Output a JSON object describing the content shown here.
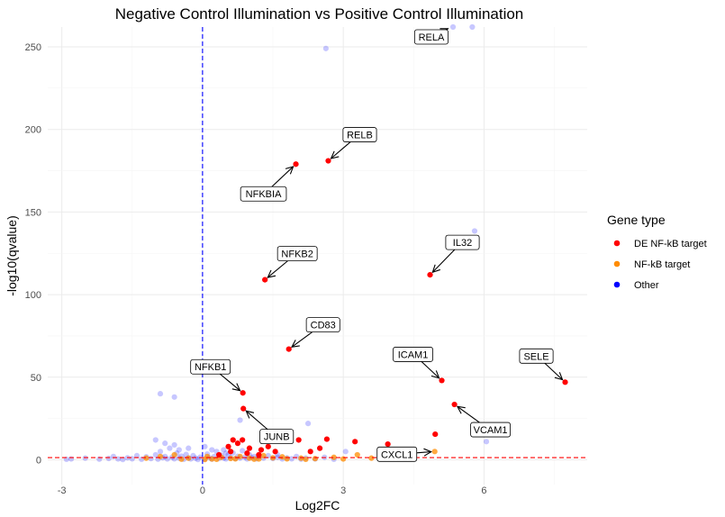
{
  "chart_data": {
    "type": "scatter",
    "title": "Negative Control Illumination vs Positive Control Illumination",
    "xlabel": "Log2FC",
    "ylabel": "-log10(qvalue)",
    "xlim": [
      -3.3,
      8.2
    ],
    "ylim": [
      -15,
      262
    ],
    "x_ticks": [
      -3,
      0,
      3,
      6
    ],
    "y_ticks": [
      0,
      50,
      100,
      150,
      200,
      250
    ],
    "grid": true,
    "legend_title": "Gene type",
    "legend_position": "right",
    "series": [
      {
        "name": "DE NF-kB target",
        "color": "#ff0000",
        "points": [
          [
            1.99,
            179
          ],
          [
            2.68,
            181
          ],
          [
            1.33,
            109
          ],
          [
            4.85,
            112
          ],
          [
            1.84,
            67
          ],
          [
            0.86,
            40.5
          ],
          [
            5.1,
            48
          ],
          [
            7.73,
            47
          ],
          [
            5.37,
            33.5
          ],
          [
            0.87,
            31
          ],
          [
            4.96,
            15.5
          ],
          [
            0.65,
            12
          ],
          [
            0.85,
            12
          ],
          [
            0.55,
            8
          ],
          [
            0.75,
            10
          ],
          [
            1.0,
            7
          ],
          [
            1.25,
            6
          ],
          [
            1.4,
            8
          ],
          [
            1.55,
            5
          ],
          [
            2.05,
            12
          ],
          [
            2.3,
            5
          ],
          [
            2.5,
            7
          ],
          [
            2.65,
            12.5
          ],
          [
            3.25,
            11
          ],
          [
            3.95,
            9.5
          ],
          [
            0.35,
            3
          ],
          [
            0.6,
            5
          ],
          [
            0.95,
            4
          ],
          [
            1.2,
            3
          ]
        ]
      },
      {
        "name": "NF-kB target",
        "color": "#ff8c00",
        "points": [
          [
            4.95,
            5
          ],
          [
            -0.9,
            2
          ],
          [
            -0.6,
            3
          ],
          [
            -0.3,
            1
          ],
          [
            0.1,
            2
          ],
          [
            0.2,
            0.5
          ],
          [
            0.4,
            1.5
          ],
          [
            0.6,
            0.8
          ],
          [
            0.8,
            2
          ],
          [
            1.0,
            1
          ],
          [
            1.2,
            0.5
          ],
          [
            1.5,
            1.2
          ],
          [
            1.8,
            0.6
          ],
          [
            2.1,
            1
          ],
          [
            2.4,
            0.7
          ],
          [
            2.8,
            1.5
          ],
          [
            3.0,
            0.5
          ],
          [
            3.3,
            3
          ],
          [
            3.6,
            1
          ],
          [
            -1.2,
            1
          ],
          [
            -0.45,
            0.4
          ],
          [
            0.05,
            0.2
          ],
          [
            0.3,
            0.3
          ],
          [
            0.7,
            0.6
          ],
          [
            1.1,
            0.4
          ],
          [
            1.3,
            2.5
          ],
          [
            1.7,
            1.8
          ],
          [
            2.2,
            0.3
          ]
        ]
      },
      {
        "name": "Other",
        "color": "#0000ff",
        "points": [
          [
            2.63,
            249
          ],
          [
            5.75,
            262
          ],
          [
            5.34,
            262
          ],
          [
            5.8,
            138.5
          ],
          [
            -0.9,
            40
          ],
          [
            -0.6,
            38
          ],
          [
            6.05,
            11
          ],
          [
            0.8,
            24
          ],
          [
            2.25,
            22
          ],
          [
            3.05,
            5
          ],
          [
            0.5,
            4
          ],
          [
            1.6,
            3
          ],
          [
            -0.5,
            6
          ],
          [
            -1.0,
            12
          ],
          [
            -2.8,
            0.5
          ],
          [
            -2.5,
            1
          ],
          [
            -2.2,
            0.4
          ],
          [
            -2.0,
            0.8
          ],
          [
            -1.8,
            0.5
          ],
          [
            -1.6,
            1.2
          ],
          [
            -1.5,
            0.6
          ],
          [
            -1.4,
            2.5
          ],
          [
            -1.3,
            0.3
          ],
          [
            -1.2,
            1.8
          ],
          [
            -1.1,
            0.7
          ],
          [
            -1.0,
            3
          ],
          [
            -0.95,
            0.4
          ],
          [
            -0.9,
            5
          ],
          [
            -0.85,
            1.2
          ],
          [
            -0.8,
            2
          ],
          [
            -0.75,
            0.5
          ],
          [
            -0.7,
            7
          ],
          [
            -0.65,
            1.5
          ],
          [
            -0.6,
            0.6
          ],
          [
            -0.55,
            4
          ],
          [
            -0.5,
            1
          ],
          [
            -0.45,
            2.2
          ],
          [
            -0.4,
            0.3
          ],
          [
            -0.35,
            3.2
          ],
          [
            -0.3,
            1.1
          ],
          [
            -0.25,
            0.5
          ],
          [
            -0.2,
            2.5
          ],
          [
            -0.15,
            1
          ],
          [
            -0.1,
            0.2
          ],
          [
            -0.05,
            1.6
          ],
          [
            0.05,
            0.6
          ],
          [
            0.1,
            3.5
          ],
          [
            0.15,
            1.2
          ],
          [
            0.2,
            0.4
          ],
          [
            0.25,
            2
          ],
          [
            0.3,
            5
          ],
          [
            0.35,
            0.8
          ],
          [
            0.4,
            2.8
          ],
          [
            0.45,
            1
          ],
          [
            0.5,
            0.5
          ],
          [
            0.55,
            3
          ],
          [
            0.6,
            1.3
          ],
          [
            0.65,
            4.2
          ],
          [
            0.7,
            0.7
          ],
          [
            0.75,
            2.1
          ],
          [
            0.8,
            1
          ],
          [
            0.85,
            5.5
          ],
          [
            0.9,
            1.5
          ],
          [
            0.95,
            0.5
          ],
          [
            1.0,
            3
          ],
          [
            1.05,
            1.2
          ],
          [
            1.1,
            2
          ],
          [
            1.15,
            0.6
          ],
          [
            1.2,
            1.8
          ],
          [
            1.3,
            1
          ],
          [
            1.4,
            2.5
          ],
          [
            1.5,
            0.8
          ],
          [
            1.6,
            1.5
          ],
          [
            1.7,
            0.5
          ],
          [
            1.8,
            1.2
          ],
          [
            1.9,
            0.6
          ],
          [
            2.0,
            2
          ],
          [
            2.1,
            0.4
          ],
          [
            2.2,
            1
          ],
          [
            2.4,
            0.5
          ],
          [
            2.6,
            1.5
          ],
          [
            2.8,
            0.3
          ],
          [
            -0.6,
            9
          ],
          [
            -0.3,
            7
          ],
          [
            0.2,
            6
          ],
          [
            -0.8,
            10
          ],
          [
            0.05,
            8
          ],
          [
            0.45,
            6
          ],
          [
            -1.7,
            0.2
          ],
          [
            -2.9,
            0.3
          ],
          [
            -1.9,
            2
          ]
        ]
      }
    ],
    "annotations": [
      {
        "label": "RELA",
        "x": 5.3,
        "y": 262
      },
      {
        "label": "RELB",
        "x": 2.68,
        "y": 181
      },
      {
        "label": "NFKBIA",
        "x": 1.99,
        "y": 179
      },
      {
        "label": "NFKB2",
        "x": 1.33,
        "y": 109
      },
      {
        "label": "IL32",
        "x": 4.85,
        "y": 112
      },
      {
        "label": "CD83",
        "x": 1.84,
        "y": 67
      },
      {
        "label": "NFKB1",
        "x": 0.86,
        "y": 40.5
      },
      {
        "label": "ICAM1",
        "x": 5.1,
        "y": 48
      },
      {
        "label": "SELE",
        "x": 7.73,
        "y": 47
      },
      {
        "label": "JUNB",
        "x": 0.87,
        "y": 31
      },
      {
        "label": "VCAM1",
        "x": 5.37,
        "y": 33.5
      },
      {
        "label": "CXCL1",
        "x": 4.95,
        "y": 5
      }
    ],
    "reference_lines": {
      "vertical_x": 0,
      "vertical_color": "#0000ff",
      "horizontal_y": 1.3,
      "horizontal_color": "#ff0000"
    }
  }
}
